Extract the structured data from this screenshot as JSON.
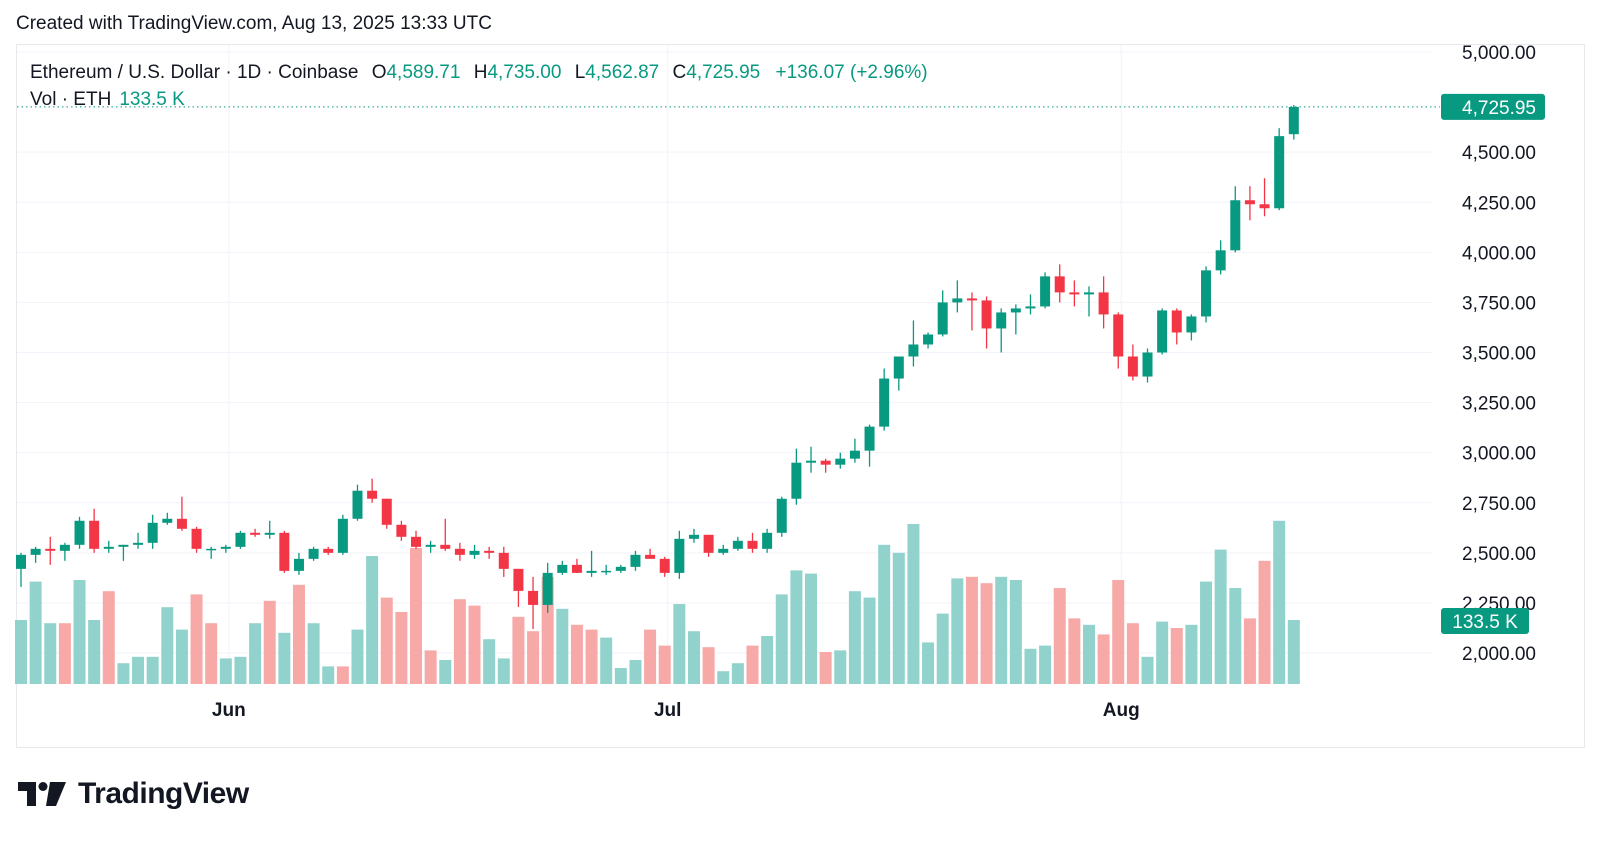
{
  "header": {
    "created_text": "Created with TradingView.com, Aug 13, 2025 13:33 UTC"
  },
  "legend": {
    "symbol": "Ethereum / U.S. Dollar · 1D · Coinbase",
    "open_label": "O",
    "open_value": "4,589.71",
    "high_label": "H",
    "high_value": "4,735.00",
    "low_label": "L",
    "low_value": "4,562.87",
    "close_label": "C",
    "close_value": "4,725.95",
    "change": "+136.07 (+2.96%)",
    "volume_label": "Vol · ETH",
    "volume_value": "133.5 K"
  },
  "price_tag": "4,725.95",
  "volume_tag": "133.5 K",
  "brand": {
    "name": "TradingView"
  },
  "colors": {
    "up": "#089981",
    "down": "#f23645",
    "vol_up": "#92d2cc",
    "vol_down": "#f7a9a7",
    "grid": "#f0f3fa"
  },
  "chart_data": {
    "type": "candlestick",
    "price_axis": {
      "ticks": [
        2000,
        2250,
        2500,
        2750,
        3000,
        3250,
        3500,
        3750,
        4000,
        4250,
        4500,
        5000
      ],
      "tick_labels": [
        "2,000.00",
        "2,250.00",
        "2,500.00",
        "2,750.00",
        "3,000.00",
        "3,250.00",
        "3,500.00",
        "3,750.00",
        "4,000.00",
        "4,250.00",
        "4,500.00",
        "5,000.00"
      ],
      "ylim": [
        1840,
        5060
      ]
    },
    "time_axis": {
      "labels": [
        "Jun",
        "Jul",
        "Aug"
      ],
      "label_indices": [
        14,
        44,
        75
      ]
    },
    "last_price": 4725.95,
    "candles": [
      [
        2420,
        2500,
        2330,
        2490
      ],
      [
        2490,
        2530,
        2450,
        2520
      ],
      [
        2520,
        2580,
        2440,
        2510
      ],
      [
        2510,
        2550,
        2460,
        2540
      ],
      [
        2540,
        2680,
        2520,
        2660
      ],
      [
        2660,
        2720,
        2500,
        2520
      ],
      [
        2520,
        2560,
        2500,
        2530
      ],
      [
        2530,
        2540,
        2460,
        2540
      ],
      [
        2540,
        2600,
        2520,
        2550
      ],
      [
        2550,
        2690,
        2520,
        2650
      ],
      [
        2650,
        2700,
        2640,
        2670
      ],
      [
        2670,
        2780,
        2610,
        2620
      ],
      [
        2620,
        2630,
        2500,
        2520
      ],
      [
        2520,
        2530,
        2470,
        2520
      ],
      [
        2520,
        2540,
        2500,
        2530
      ],
      [
        2530,
        2610,
        2520,
        2600
      ],
      [
        2600,
        2620,
        2580,
        2590
      ],
      [
        2590,
        2660,
        2570,
        2600
      ],
      [
        2600,
        2610,
        2400,
        2410
      ],
      [
        2410,
        2500,
        2390,
        2470
      ],
      [
        2470,
        2530,
        2460,
        2520
      ],
      [
        2520,
        2530,
        2490,
        2500
      ],
      [
        2500,
        2690,
        2490,
        2670
      ],
      [
        2670,
        2840,
        2660,
        2810
      ],
      [
        2810,
        2870,
        2750,
        2770
      ],
      [
        2770,
        2770,
        2620,
        2640
      ],
      [
        2640,
        2660,
        2560,
        2580
      ],
      [
        2580,
        2610,
        2520,
        2530
      ],
      [
        2530,
        2560,
        2500,
        2540
      ],
      [
        2540,
        2670,
        2510,
        2520
      ],
      [
        2520,
        2550,
        2460,
        2490
      ],
      [
        2490,
        2540,
        2470,
        2510
      ],
      [
        2510,
        2530,
        2470,
        2500
      ],
      [
        2500,
        2530,
        2380,
        2420
      ],
      [
        2420,
        2420,
        2230,
        2310
      ],
      [
        2310,
        2380,
        2120,
        2240
      ],
      [
        2240,
        2450,
        2200,
        2400
      ],
      [
        2400,
        2460,
        2390,
        2440
      ],
      [
        2440,
        2470,
        2400,
        2400
      ],
      [
        2400,
        2510,
        2380,
        2410
      ],
      [
        2410,
        2440,
        2390,
        2410
      ],
      [
        2410,
        2440,
        2400,
        2430
      ],
      [
        2430,
        2510,
        2410,
        2490
      ],
      [
        2490,
        2520,
        2470,
        2470
      ],
      [
        2470,
        2480,
        2380,
        2400
      ],
      [
        2400,
        2610,
        2370,
        2570
      ],
      [
        2570,
        2620,
        2550,
        2590
      ],
      [
        2590,
        2590,
        2480,
        2500
      ],
      [
        2500,
        2540,
        2490,
        2520
      ],
      [
        2520,
        2580,
        2510,
        2560
      ],
      [
        2560,
        2600,
        2500,
        2520
      ],
      [
        2520,
        2620,
        2500,
        2600
      ],
      [
        2600,
        2780,
        2580,
        2770
      ],
      [
        2770,
        3020,
        2740,
        2950
      ],
      [
        2950,
        3030,
        2900,
        2960
      ],
      [
        2960,
        2970,
        2900,
        2940
      ],
      [
        2940,
        3000,
        2920,
        2970
      ],
      [
        2970,
        3070,
        2950,
        3010
      ],
      [
        3010,
        3140,
        2930,
        3130
      ],
      [
        3130,
        3420,
        3110,
        3370
      ],
      [
        3370,
        3480,
        3310,
        3480
      ],
      [
        3480,
        3660,
        3430,
        3540
      ],
      [
        3540,
        3600,
        3520,
        3590
      ],
      [
        3590,
        3810,
        3580,
        3750
      ],
      [
        3750,
        3860,
        3700,
        3770
      ],
      [
        3770,
        3800,
        3610,
        3760
      ],
      [
        3760,
        3780,
        3520,
        3620
      ],
      [
        3620,
        3720,
        3500,
        3700
      ],
      [
        3700,
        3740,
        3590,
        3720
      ],
      [
        3720,
        3790,
        3690,
        3730
      ],
      [
        3730,
        3900,
        3720,
        3880
      ],
      [
        3880,
        3940,
        3750,
        3800
      ],
      [
        3800,
        3860,
        3730,
        3790
      ],
      [
        3790,
        3830,
        3680,
        3800
      ],
      [
        3800,
        3880,
        3620,
        3690
      ],
      [
        3690,
        3700,
        3420,
        3480
      ],
      [
        3480,
        3540,
        3360,
        3380
      ],
      [
        3380,
        3520,
        3350,
        3500
      ],
      [
        3500,
        3720,
        3490,
        3710
      ],
      [
        3710,
        3720,
        3540,
        3600
      ],
      [
        3600,
        3690,
        3560,
        3680
      ],
      [
        3680,
        3930,
        3650,
        3910
      ],
      [
        3910,
        4060,
        3890,
        4010
      ],
      [
        4010,
        4330,
        4000,
        4260
      ],
      [
        4260,
        4330,
        4160,
        4240
      ],
      [
        4240,
        4370,
        4180,
        4220
      ],
      [
        4220,
        4620,
        4210,
        4580
      ],
      [
        4589.71,
        4735,
        4562.87,
        4725.95
      ]
    ],
    "volumes": [
      [
        "up",
        0.4
      ],
      [
        "up",
        0.64
      ],
      [
        "up",
        0.38
      ],
      [
        "down",
        0.38
      ],
      [
        "up",
        0.65
      ],
      [
        "up",
        0.4
      ],
      [
        "down",
        0.58
      ],
      [
        "up",
        0.13
      ],
      [
        "up",
        0.17
      ],
      [
        "up",
        0.17
      ],
      [
        "up",
        0.48
      ],
      [
        "up",
        0.34
      ],
      [
        "down",
        0.56
      ],
      [
        "down",
        0.38
      ],
      [
        "up",
        0.16
      ],
      [
        "up",
        0.17
      ],
      [
        "up",
        0.38
      ],
      [
        "down",
        0.52
      ],
      [
        "up",
        0.32
      ],
      [
        "down",
        0.62
      ],
      [
        "up",
        0.38
      ],
      [
        "up",
        0.11
      ],
      [
        "down",
        0.11
      ],
      [
        "up",
        0.34
      ],
      [
        "up",
        0.8
      ],
      [
        "down",
        0.54
      ],
      [
        "down",
        0.45
      ],
      [
        "down",
        0.85
      ],
      [
        "down",
        0.21
      ],
      [
        "up",
        0.15
      ],
      [
        "down",
        0.53
      ],
      [
        "down",
        0.49
      ],
      [
        "up",
        0.28
      ],
      [
        "up",
        0.16
      ],
      [
        "down",
        0.42
      ],
      [
        "down",
        0.33
      ],
      [
        "down",
        0.67
      ],
      [
        "up",
        0.47
      ],
      [
        "down",
        0.37
      ],
      [
        "down",
        0.34
      ],
      [
        "up",
        0.29
      ],
      [
        "up",
        0.1
      ],
      [
        "up",
        0.15
      ],
      [
        "down",
        0.34
      ],
      [
        "down",
        0.24
      ],
      [
        "up",
        0.5
      ],
      [
        "up",
        0.33
      ],
      [
        "down",
        0.23
      ],
      [
        "up",
        0.08
      ],
      [
        "up",
        0.13
      ],
      [
        "down",
        0.24
      ],
      [
        "up",
        0.3
      ],
      [
        "up",
        0.56
      ],
      [
        "up",
        0.71
      ],
      [
        "up",
        0.69
      ],
      [
        "down",
        0.2
      ],
      [
        "up",
        0.21
      ],
      [
        "up",
        0.58
      ],
      [
        "up",
        0.54
      ],
      [
        "up",
        0.87
      ],
      [
        "up",
        0.82
      ],
      [
        "up",
        1.0
      ],
      [
        "up",
        0.26
      ],
      [
        "up",
        0.44
      ],
      [
        "up",
        0.66
      ],
      [
        "down",
        0.67
      ],
      [
        "down",
        0.63
      ],
      [
        "up",
        0.67
      ],
      [
        "up",
        0.65
      ],
      [
        "up",
        0.22
      ],
      [
        "up",
        0.24
      ],
      [
        "down",
        0.6
      ],
      [
        "down",
        0.41
      ],
      [
        "up",
        0.37
      ],
      [
        "down",
        0.31
      ],
      [
        "down",
        0.65
      ],
      [
        "down",
        0.38
      ],
      [
        "up",
        0.17
      ],
      [
        "up",
        0.39
      ],
      [
        "down",
        0.35
      ],
      [
        "up",
        0.37
      ],
      [
        "up",
        0.64
      ],
      [
        "up",
        0.84
      ],
      [
        "up",
        0.6
      ],
      [
        "down",
        0.41
      ],
      [
        "down",
        0.77
      ],
      [
        "up",
        1.02
      ],
      [
        "up",
        0.4
      ]
    ]
  }
}
